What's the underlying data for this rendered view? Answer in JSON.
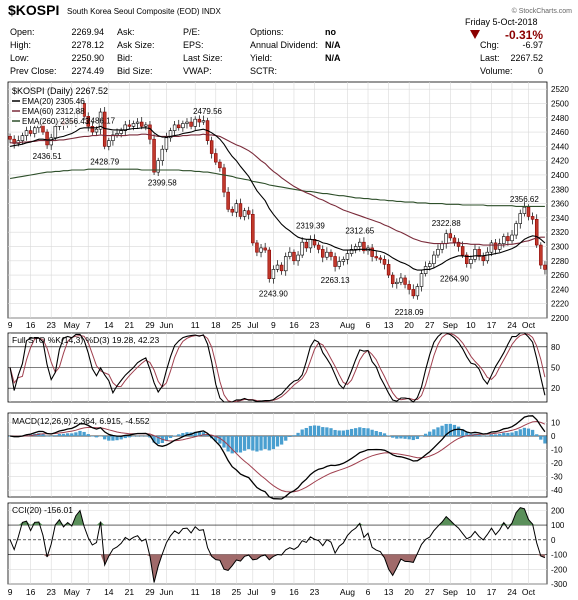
{
  "header": {
    "symbol": "$KOSPI",
    "name": "South Korea Seoul Composite (EOD)",
    "exchange": "INDX",
    "brand": "© StockCharts.com",
    "date": "Friday  5-Oct-2018",
    "change_pct": "-0.31%",
    "arrow_color": "#8b0000"
  },
  "quote": {
    "col1": [
      [
        "Open:",
        "2269.94"
      ],
      [
        "High:",
        "2278.12"
      ],
      [
        "Low:",
        "2250.90"
      ],
      [
        "Prev Close:",
        "2274.49"
      ]
    ],
    "col2": [
      "Ask:",
      "Ask Size:",
      "Bid:",
      "Bid Size:"
    ],
    "col3": [
      "P/E:",
      "EPS:",
      "Last Size:",
      "VWAP:"
    ],
    "col4": [
      [
        "Options:",
        "no"
      ],
      [
        "Annual Dividend:",
        "N/A"
      ],
      [
        "Yield:",
        "N/A"
      ],
      [
        "SCTR:",
        ""
      ]
    ],
    "col5": [
      [
        "Chg:",
        "-6.97"
      ],
      [
        "Last:",
        "2267.52"
      ],
      [
        "Volume:",
        "0"
      ]
    ]
  },
  "price_panel": {
    "legend": [
      {
        "text": "$KOSPI (Daily) 2267.52",
        "color": "#000000"
      },
      {
        "text": "EMA(20) 2305.46",
        "color": "#000000"
      },
      {
        "text": "EMA(60) 2312.88",
        "color": "#7a2b3a"
      },
      {
        "text": "EMA(260) 2356.43",
        "color": "#2e4f2a"
      }
    ],
    "annotations": [
      {
        "text": "2436.51",
        "i": 9
      },
      {
        "text": "2486.17",
        "i": 22
      },
      {
        "text": "2428.79",
        "i": 23
      },
      {
        "text": "2479.56",
        "i": 48
      },
      {
        "text": "2399.58",
        "i": 37
      },
      {
        "text": "2243.90",
        "i": 64
      },
      {
        "text": "2319.39",
        "i": 73
      },
      {
        "text": "2263.13",
        "i": 79
      },
      {
        "text": "2312.65",
        "i": 85
      },
      {
        "text": "2218.09",
        "i": 97
      },
      {
        "text": "2322.88",
        "i": 106
      },
      {
        "text": "2264.90",
        "i": 108
      },
      {
        "text": "2356.62",
        "i": 125
      }
    ]
  },
  "sto_panel": {
    "label": "Full STO %K(14,3) %D(3) 19.28, 42.23",
    "yticks": [
      "80",
      "50",
      "20"
    ]
  },
  "macd_panel": {
    "label": "MACD(12,26,9) 2.364, 6.915, -4.552",
    "yticks": [
      "10",
      "0",
      "-10",
      "-20",
      "-30",
      "-40"
    ]
  },
  "cci_panel": {
    "label": "CCI(20) -156.01",
    "yticks": [
      "200",
      "100",
      "0",
      "-100",
      "-200",
      "-300"
    ]
  },
  "chart_data": {
    "type": "candlestick",
    "title": "$KOSPI (Daily)",
    "ylim": [
      2200,
      2530
    ],
    "yticks": [
      2200,
      2220,
      2240,
      2260,
      2280,
      2300,
      2320,
      2340,
      2360,
      2380,
      2400,
      2420,
      2440,
      2460,
      2480,
      2500,
      2520
    ],
    "x_ticks": [
      {
        "i": 0,
        "label": "9"
      },
      {
        "i": 5,
        "label": "16"
      },
      {
        "i": 10,
        "label": "23"
      },
      {
        "i": 15,
        "label": "May"
      },
      {
        "i": 19,
        "label": "7"
      },
      {
        "i": 24,
        "label": "14"
      },
      {
        "i": 29,
        "label": "21"
      },
      {
        "i": 34,
        "label": "29"
      },
      {
        "i": 38,
        "label": "Jun"
      },
      {
        "i": 45,
        "label": "11"
      },
      {
        "i": 50,
        "label": "18"
      },
      {
        "i": 55,
        "label": "25"
      },
      {
        "i": 59,
        "label": "Jul"
      },
      {
        "i": 64,
        "label": "9"
      },
      {
        "i": 69,
        "label": "16"
      },
      {
        "i": 74,
        "label": "23"
      },
      {
        "i": 82,
        "label": "Aug"
      },
      {
        "i": 87,
        "label": "6"
      },
      {
        "i": 92,
        "label": "13"
      },
      {
        "i": 97,
        "label": "20"
      },
      {
        "i": 102,
        "label": "27"
      },
      {
        "i": 107,
        "label": "Sep"
      },
      {
        "i": 112,
        "label": "10"
      },
      {
        "i": 117,
        "label": "17"
      },
      {
        "i": 122,
        "label": "24"
      },
      {
        "i": 126,
        "label": "Oct"
      }
    ],
    "close": [
      2450,
      2444,
      2448,
      2455,
      2462,
      2458,
      2466,
      2470,
      2460,
      2442,
      2452,
      2468,
      2475,
      2470,
      2476,
      2474,
      2488,
      2500,
      2482,
      2468,
      2460,
      2464,
      2488,
      2440,
      2448,
      2456,
      2458,
      2462,
      2470,
      2468,
      2472,
      2474,
      2468,
      2470,
      2450,
      2404,
      2420,
      2436,
      2452,
      2462,
      2470,
      2466,
      2472,
      2474,
      2468,
      2478,
      2474,
      2476,
      2448,
      2430,
      2418,
      2410,
      2376,
      2352,
      2348,
      2360,
      2342,
      2350,
      2345,
      2305,
      2292,
      2298,
      2295,
      2255,
      2268,
      2274,
      2266,
      2286,
      2292,
      2280,
      2288,
      2306,
      2298,
      2310,
      2302,
      2296,
      2285,
      2292,
      2286,
      2272,
      2279,
      2282,
      2290,
      2296,
      2300,
      2306,
      2294,
      2298,
      2286,
      2284,
      2282,
      2275,
      2260,
      2248,
      2250,
      2256,
      2247,
      2240,
      2231,
      2244,
      2262,
      2272,
      2276,
      2288,
      2296,
      2304,
      2318,
      2312,
      2306,
      2300,
      2288,
      2276,
      2282,
      2296,
      2286,
      2280,
      2292,
      2305,
      2296,
      2304,
      2314,
      2308,
      2316,
      2332,
      2346,
      2355,
      2342,
      2338,
      2302,
      2274,
      2268
    ],
    "ema20": [
      2440,
      2441,
      2442,
      2443,
      2445,
      2446,
      2448,
      2450,
      2450,
      2449,
      2449,
      2451,
      2453,
      2454,
      2456,
      2458,
      2461,
      2465,
      2466,
      2466,
      2466,
      2466,
      2468,
      2465,
      2464,
      2463,
      2463,
      2463,
      2463,
      2464,
      2465,
      2465,
      2466,
      2466,
      2465,
      2459,
      2455,
      2453,
      2453,
      2454,
      2455,
      2456,
      2458,
      2459,
      2460,
      2462,
      2463,
      2464,
      2462,
      2459,
      2455,
      2450,
      2443,
      2434,
      2426,
      2420,
      2412,
      2405,
      2398,
      2388,
      2378,
      2371,
      2364,
      2353,
      2345,
      2338,
      2331,
      2326,
      2322,
      2317,
      2313,
      2311,
      2310,
      2310,
      2309,
      2308,
      2305,
      2304,
      2302,
      2299,
      2297,
      2295,
      2295,
      2295,
      2295,
      2296,
      2296,
      2296,
      2295,
      2294,
      2293,
      2291,
      2288,
      2284,
      2281,
      2278,
      2276,
      2273,
      2269,
      2267,
      2267,
      2268,
      2268,
      2270,
      2273,
      2276,
      2280,
      2283,
      2285,
      2287,
      2287,
      2286,
      2286,
      2287,
      2287,
      2287,
      2288,
      2289,
      2290,
      2291,
      2293,
      2295,
      2297,
      2300,
      2305,
      2310,
      2313,
      2315,
      2314,
      2310,
      2305
    ],
    "ema60": [
      2445,
      2445,
      2445,
      2446,
      2446,
      2447,
      2447,
      2448,
      2448,
      2448,
      2448,
      2448,
      2449,
      2449,
      2450,
      2451,
      2452,
      2453,
      2454,
      2454,
      2455,
      2455,
      2456,
      2455,
      2455,
      2455,
      2455,
      2455,
      2455,
      2456,
      2456,
      2456,
      2457,
      2457,
      2456,
      2455,
      2454,
      2454,
      2454,
      2454,
      2454,
      2454,
      2455,
      2455,
      2456,
      2456,
      2456,
      2457,
      2456,
      2456,
      2455,
      2454,
      2451,
      2448,
      2445,
      2442,
      2440,
      2437,
      2434,
      2430,
      2425,
      2420,
      2416,
      2410,
      2405,
      2401,
      2396,
      2392,
      2388,
      2384,
      2381,
      2378,
      2375,
      2373,
      2370,
      2367,
      2365,
      2362,
      2359,
      2357,
      2354,
      2351,
      2349,
      2347,
      2345,
      2343,
      2341,
      2339,
      2337,
      2335,
      2333,
      2330,
      2328,
      2325,
      2322,
      2320,
      2317,
      2314,
      2311,
      2309,
      2307,
      2306,
      2305,
      2304,
      2304,
      2304,
      2304,
      2305,
      2305,
      2305,
      2304,
      2304,
      2303,
      2303,
      2303,
      2302,
      2302,
      2302,
      2302,
      2302,
      2302,
      2303,
      2303,
      2304,
      2305,
      2307,
      2308,
      2310,
      2312,
      2313,
      2313
    ],
    "ema260": [
      2395,
      2396,
      2397,
      2398,
      2399,
      2400,
      2401,
      2402,
      2403,
      2404,
      2404,
      2405,
      2405,
      2406,
      2406,
      2407,
      2407,
      2407,
      2407,
      2408,
      2408,
      2408,
      2408,
      2408,
      2408,
      2408,
      2408,
      2408,
      2408,
      2408,
      2408,
      2408,
      2407,
      2407,
      2407,
      2407,
      2407,
      2407,
      2407,
      2407,
      2407,
      2407,
      2406,
      2406,
      2406,
      2405,
      2405,
      2404,
      2404,
      2403,
      2402,
      2401,
      2400,
      2399,
      2398,
      2396,
      2395,
      2394,
      2393,
      2391,
      2390,
      2389,
      2388,
      2386,
      2385,
      2384,
      2383,
      2382,
      2381,
      2380,
      2379,
      2378,
      2377,
      2377,
      2376,
      2375,
      2374,
      2374,
      2373,
      2372,
      2371,
      2371,
      2370,
      2369,
      2368,
      2368,
      2367,
      2367,
      2366,
      2366,
      2365,
      2365,
      2364,
      2364,
      2363,
      2363,
      2362,
      2362,
      2362,
      2361,
      2361,
      2361,
      2360,
      2360,
      2360,
      2360,
      2359,
      2359,
      2359,
      2359,
      2358,
      2358,
      2358,
      2358,
      2358,
      2358,
      2357,
      2357,
      2357,
      2357,
      2357,
      2357,
      2357,
      2356,
      2356,
      2356,
      2356,
      2356,
      2356,
      2356,
      2356
    ]
  }
}
